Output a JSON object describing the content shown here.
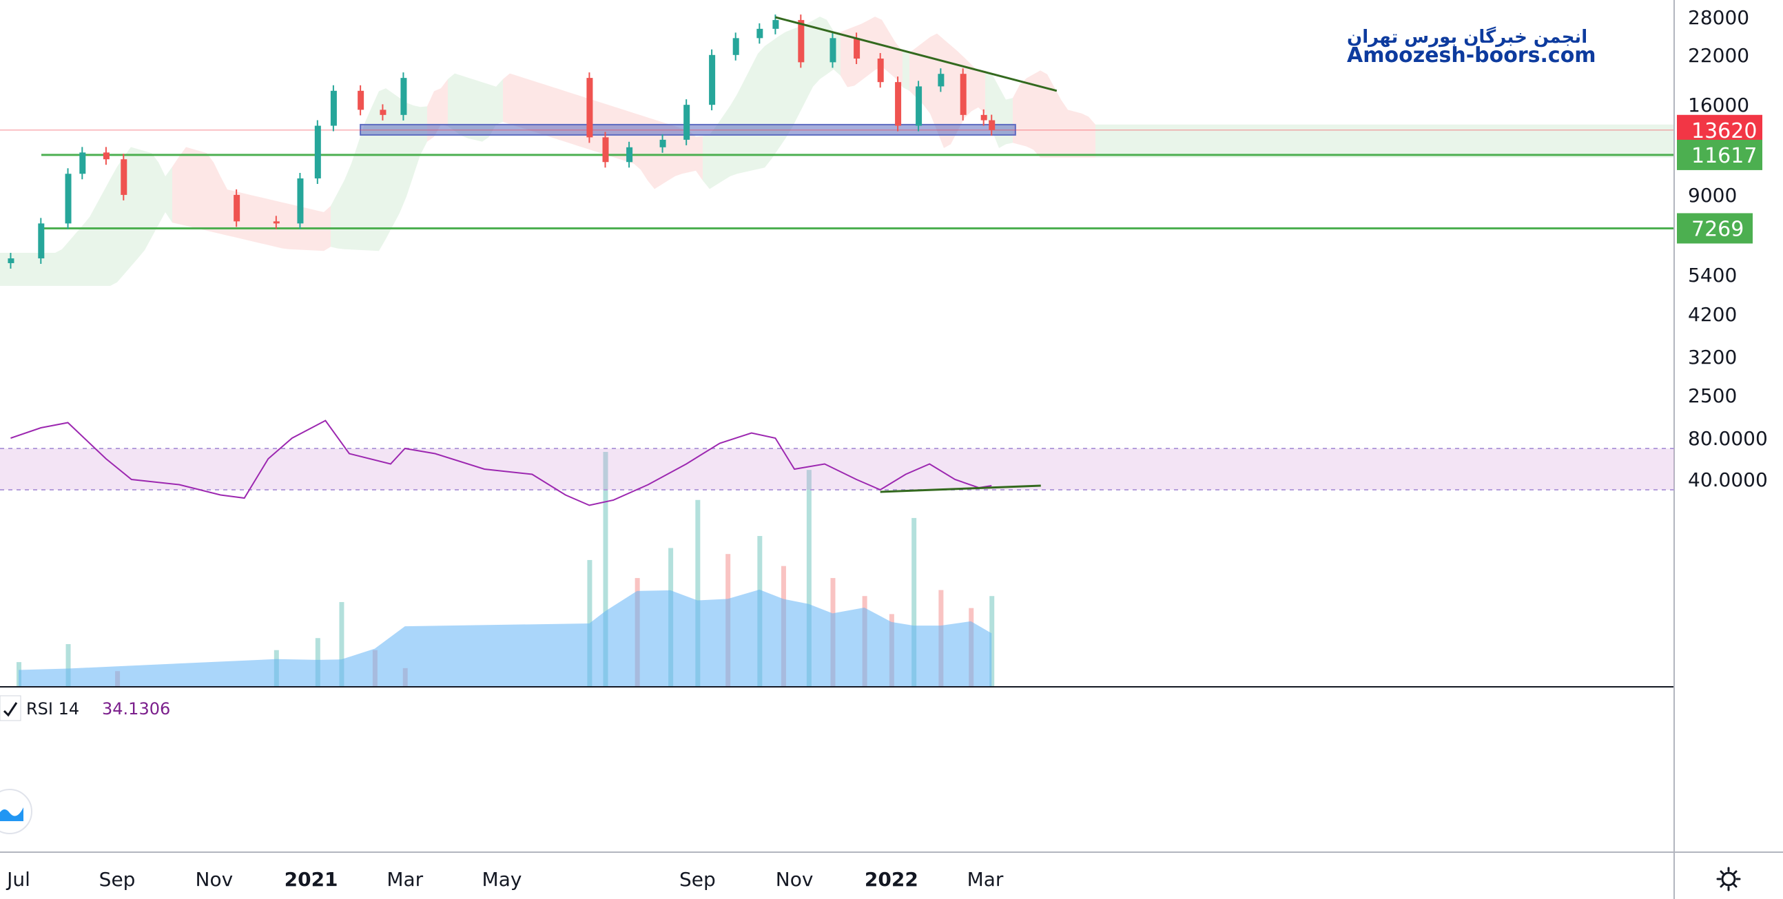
{
  "watermark": {
    "line1": "انجمن خبرگان بورس تهران",
    "line2": "Amoozesh-boors.com"
  },
  "price_axis": {
    "ticks": [
      "28000",
      "22000",
      "16000",
      "9000",
      "7269",
      "5400",
      "4200",
      "3200",
      "2500"
    ],
    "scale": "log"
  },
  "rsi_axis": {
    "ticks": [
      "80.0000",
      "40.0000"
    ]
  },
  "time_axis": {
    "labels": [
      {
        "text": "Jul",
        "bold": false
      },
      {
        "text": "Sep",
        "bold": false
      },
      {
        "text": "Nov",
        "bold": false
      },
      {
        "text": "2021",
        "bold": true
      },
      {
        "text": "Mar",
        "bold": false
      },
      {
        "text": "May",
        "bold": false
      },
      {
        "text": "Sep",
        "bold": false
      },
      {
        "text": "Nov",
        "bold": false
      },
      {
        "text": "2022",
        "bold": true
      },
      {
        "text": "Mar",
        "bold": false
      }
    ]
  },
  "price_badges": [
    {
      "value": "13620",
      "color": "#f23645"
    },
    {
      "value": "11617",
      "color": "#4caf50"
    },
    {
      "value": "7269",
      "color": "#4caf50"
    }
  ],
  "rsi_legend": {
    "label": "RSI 14",
    "value": "34.1306"
  },
  "colors": {
    "up": "#26a69a",
    "down": "#ef5350",
    "rsi_line": "#9c27b0",
    "rsi_band": "#e1bee7",
    "volume_area": "#64b5f6",
    "support_line": "#4caf50",
    "trend_line": "#33691e",
    "zone": "#5c6bc0"
  },
  "chart_data": {
    "type": "candlestick",
    "x_range": [
      "2020-06",
      "2022-03"
    ],
    "y_scale": "log",
    "ylim": [
      1900,
      31000
    ],
    "candles": [
      {
        "date": "2020-06-26",
        "close": 6000
      },
      {
        "date": "2020-07-15",
        "close": 7500
      },
      {
        "date": "2020-08-01",
        "close": 10300
      },
      {
        "date": "2020-08-10",
        "close": 11800
      },
      {
        "date": "2020-08-25",
        "close": 11300
      },
      {
        "date": "2020-09-05",
        "close": 9000
      },
      {
        "date": "2020-11-15",
        "close": 7600
      },
      {
        "date": "2020-12-10",
        "close": 7500
      },
      {
        "date": "2020-12-25",
        "close": 10000
      },
      {
        "date": "2021-01-05",
        "close": 14000
      },
      {
        "date": "2021-01-15",
        "close": 17500
      },
      {
        "date": "2021-02-01",
        "close": 15500
      },
      {
        "date": "2021-02-15",
        "close": 15000
      },
      {
        "date": "2021-02-28",
        "close": 19000
      },
      {
        "date": "2021-06-25",
        "close": 13000
      },
      {
        "date": "2021-07-05",
        "close": 11100
      },
      {
        "date": "2021-07-20",
        "close": 12200
      },
      {
        "date": "2021-08-10",
        "close": 12800
      },
      {
        "date": "2021-08-25",
        "close": 16000
      },
      {
        "date": "2021-09-10",
        "close": 22000
      },
      {
        "date": "2021-09-25",
        "close": 24500
      },
      {
        "date": "2021-10-10",
        "close": 26000
      },
      {
        "date": "2021-10-20",
        "close": 27500
      },
      {
        "date": "2021-11-05",
        "close": 21000
      },
      {
        "date": "2021-11-25",
        "close": 24500
      },
      {
        "date": "2021-12-10",
        "close": 21500
      },
      {
        "date": "2021-12-25",
        "close": 18500
      },
      {
        "date": "2022-01-05",
        "close": 14000
      },
      {
        "date": "2022-01-18",
        "close": 18000
      },
      {
        "date": "2022-02-01",
        "close": 19500
      },
      {
        "date": "2022-02-15",
        "close": 15000
      },
      {
        "date": "2022-02-28",
        "close": 14500
      },
      {
        "date": "2022-03-05",
        "close": 13620
      }
    ],
    "horizontal_levels": [
      {
        "value": 13620,
        "type": "last price"
      },
      {
        "value": 11617,
        "type": "support"
      },
      {
        "value": 7269,
        "type": "support"
      }
    ],
    "support_zone": {
      "start": "2021-02-01",
      "end": "2022-03-20",
      "low": 13200,
      "high": 14100
    },
    "trend_line": [
      {
        "date": "2021-10-20",
        "value": 28000
      },
      {
        "date": "2022-04-15",
        "value": 17500
      }
    ],
    "rsi": {
      "period": 14,
      "last": 34.1306,
      "ylim": [
        10,
        100
      ],
      "band": [
        30,
        70
      ],
      "points": [
        {
          "date": "2020-06-26",
          "value": 80
        },
        {
          "date": "2020-07-15",
          "value": 90
        },
        {
          "date": "2020-08-01",
          "value": 95
        },
        {
          "date": "2020-08-25",
          "value": 60
        },
        {
          "date": "2020-09-10",
          "value": 40
        },
        {
          "date": "2020-10-10",
          "value": 35
        },
        {
          "date": "2020-11-05",
          "value": 25
        },
        {
          "date": "2020-11-20",
          "value": 22
        },
        {
          "date": "2020-12-05",
          "value": 60
        },
        {
          "date": "2020-12-20",
          "value": 80
        },
        {
          "date": "2021-01-10",
          "value": 97
        },
        {
          "date": "2021-01-25",
          "value": 65
        },
        {
          "date": "2021-02-20",
          "value": 55
        },
        {
          "date": "2021-03-01",
          "value": 70
        },
        {
          "date": "2021-03-20",
          "value": 65
        },
        {
          "date": "2021-04-20",
          "value": 50
        },
        {
          "date": "2021-05-20",
          "value": 45
        },
        {
          "date": "2021-06-10",
          "value": 25
        },
        {
          "date": "2021-06-25",
          "value": 15
        },
        {
          "date": "2021-07-10",
          "value": 20
        },
        {
          "date": "2021-08-01",
          "value": 35
        },
        {
          "date": "2021-08-25",
          "value": 55
        },
        {
          "date": "2021-09-15",
          "value": 75
        },
        {
          "date": "2021-10-05",
          "value": 85
        },
        {
          "date": "2021-10-20",
          "value": 80
        },
        {
          "date": "2021-11-01",
          "value": 50
        },
        {
          "date": "2021-11-20",
          "value": 55
        },
        {
          "date": "2021-12-10",
          "value": 40
        },
        {
          "date": "2021-12-25",
          "value": 30
        },
        {
          "date": "2022-01-10",
          "value": 45
        },
        {
          "date": "2022-01-25",
          "value": 55
        },
        {
          "date": "2022-02-10",
          "value": 40
        },
        {
          "date": "2022-02-25",
          "value": 32
        },
        {
          "date": "2022-03-05",
          "value": 34
        }
      ],
      "trend_line": [
        {
          "date": "2021-12-25",
          "value": 28
        },
        {
          "date": "2022-04-05",
          "value": 34
        }
      ]
    },
    "volume": {
      "max": 3900,
      "bars": [
        {
          "date": "2020-07-01",
          "value": 400
        },
        {
          "date": "2020-08-01",
          "value": 700
        },
        {
          "date": "2020-09-01",
          "value": 250
        },
        {
          "date": "2020-12-10",
          "value": 600
        },
        {
          "date": "2021-01-05",
          "value": 800
        },
        {
          "date": "2021-01-20",
          "value": 1400
        },
        {
          "date": "2021-02-10",
          "value": 600
        },
        {
          "date": "2021-03-01",
          "value": 300
        },
        {
          "date": "2021-06-25",
          "value": 2100
        },
        {
          "date": "2021-07-05",
          "value": 3900
        },
        {
          "date": "2021-07-25",
          "value": 1800
        },
        {
          "date": "2021-08-15",
          "value": 2300
        },
        {
          "date": "2021-09-01",
          "value": 3100
        },
        {
          "date": "2021-09-20",
          "value": 2200
        },
        {
          "date": "2021-10-10",
          "value": 2500
        },
        {
          "date": "2021-10-25",
          "value": 2000
        },
        {
          "date": "2021-11-10",
          "value": 3600
        },
        {
          "date": "2021-11-25",
          "value": 1800
        },
        {
          "date": "2021-12-15",
          "value": 1500
        },
        {
          "date": "2022-01-01",
          "value": 1200
        },
        {
          "date": "2022-01-15",
          "value": 2800
        },
        {
          "date": "2022-02-01",
          "value": 1600
        },
        {
          "date": "2022-02-20",
          "value": 1300
        },
        {
          "date": "2022-03-05",
          "value": 1500
        }
      ]
    },
    "ichimoku_cloud": true,
    "grid": false
  }
}
